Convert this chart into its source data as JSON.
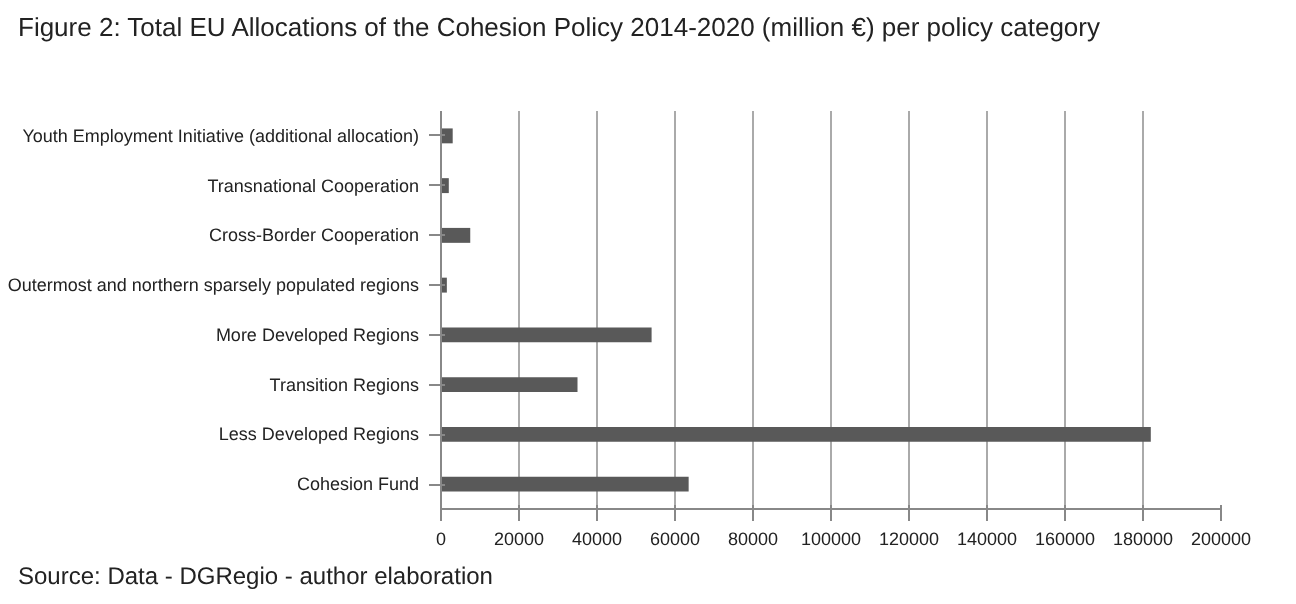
{
  "chart_data": {
    "type": "bar",
    "orientation": "horizontal",
    "title": "Figure 2: Total EU Allocations of the Cohesion Policy 2014-2020 (million €) per policy category",
    "categories": [
      "Youth Employment Initiative (additional allocation)",
      "Transnational Cooperation",
      "Cross-Border Cooperation",
      "Outermost and northern sparsely populated regions",
      "More Developed Regions",
      "Transition Regions",
      "Less Developed Regions",
      "Cohesion Fund"
    ],
    "values": [
      3000,
      2000,
      7500,
      1500,
      54000,
      35000,
      182000,
      63500
    ],
    "color": "#595959",
    "xlim": [
      0,
      200000
    ],
    "xticks": [
      0,
      20000,
      40000,
      60000,
      80000,
      100000,
      120000,
      140000,
      160000,
      180000,
      200000
    ],
    "grid": "x",
    "annotations": [
      "Source: Data - DGRegio - author elaboration"
    ]
  }
}
